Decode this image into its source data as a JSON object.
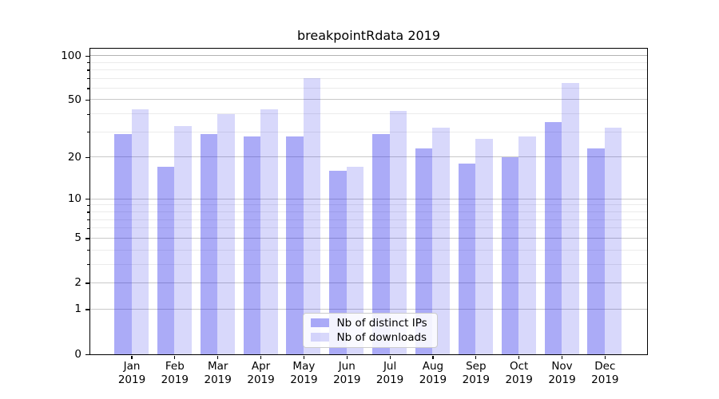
{
  "chart_data": {
    "type": "bar",
    "title": "breakpointRdata 2019",
    "year": "2019",
    "categories": [
      "Jan",
      "Feb",
      "Mar",
      "Apr",
      "May",
      "Jun",
      "Jul",
      "Aug",
      "Sep",
      "Oct",
      "Nov",
      "Dec"
    ],
    "series": [
      {
        "name": "Nb of distinct IPs",
        "base_color": "#0d0de8",
        "alpha": 0.35,
        "rendered_color": "#aaaaf7",
        "values": [
          29,
          17,
          29,
          28,
          28,
          16,
          29,
          23,
          18,
          20,
          35,
          23
        ]
      },
      {
        "name": "Nb of downloads",
        "base_color": "#0d0de8",
        "alpha": 0.16,
        "rendered_color": "#d8d8fb",
        "values": [
          43,
          33,
          40,
          43,
          70,
          17,
          42,
          32,
          27,
          28,
          65,
          32
        ]
      }
    ],
    "yscale": "log1p",
    "ylim": [
      0,
      112
    ],
    "ytick_labels": [
      "100",
      "50",
      "20",
      "10",
      "5",
      "2",
      "1",
      "0"
    ],
    "ytick_values": [
      100,
      50,
      20,
      10,
      5,
      2,
      1,
      0
    ],
    "minor_gridline_values": [
      90,
      80,
      70,
      60,
      40,
      30,
      9,
      8,
      7,
      6,
      4,
      3
    ],
    "grid": true,
    "legend_position": "lower center",
    "background_color": "#ffffff",
    "spine_color": "#000000"
  }
}
